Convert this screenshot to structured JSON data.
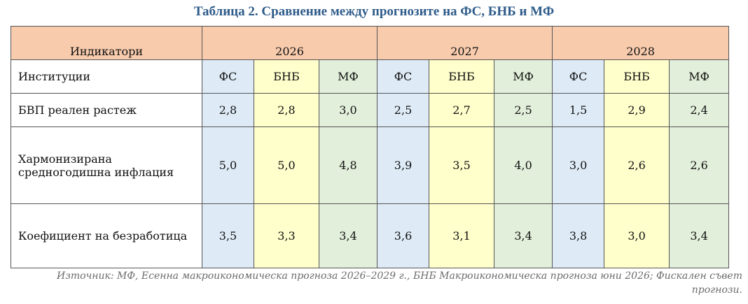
{
  "title": "Таблица 2. Сравнение между прогнозите на ФС, БНБ и МФ",
  "table": {
    "indicator_label": "Индикатори",
    "years": [
      "2026",
      "2027",
      "2028"
    ],
    "institutions_label": "Институции",
    "institutions": [
      "ФС",
      "БНБ",
      "МФ",
      "ФС",
      "БНБ",
      "МФ",
      "ФС",
      "БНБ",
      "МФ"
    ],
    "rows": [
      {
        "label": "БВП реален растеж",
        "values": [
          "2,8",
          "2,8",
          "3,0",
          "2,5",
          "2,7",
          "2,5",
          "1,5",
          "2,9",
          "2,4"
        ]
      },
      {
        "label": "Хармонизирана средногодишна инфлация",
        "values": [
          "5,0",
          "5,0",
          "4,8",
          "3,9",
          "3,5",
          "4,0",
          "3,0",
          "2,6",
          "2,6"
        ]
      },
      {
        "label": "Коефициент на безработица",
        "values": [
          "3,5",
          "3,3",
          "3,4",
          "3,6",
          "3,1",
          "3,4",
          "3,8",
          "3,0",
          "3,4"
        ]
      }
    ]
  },
  "source": "Източник: МФ, Есенна макроикономическа прогноза 2026–2029 г., БНБ Макроикономическа прогноза юни 2026; Фискален съвет прогнози."
}
